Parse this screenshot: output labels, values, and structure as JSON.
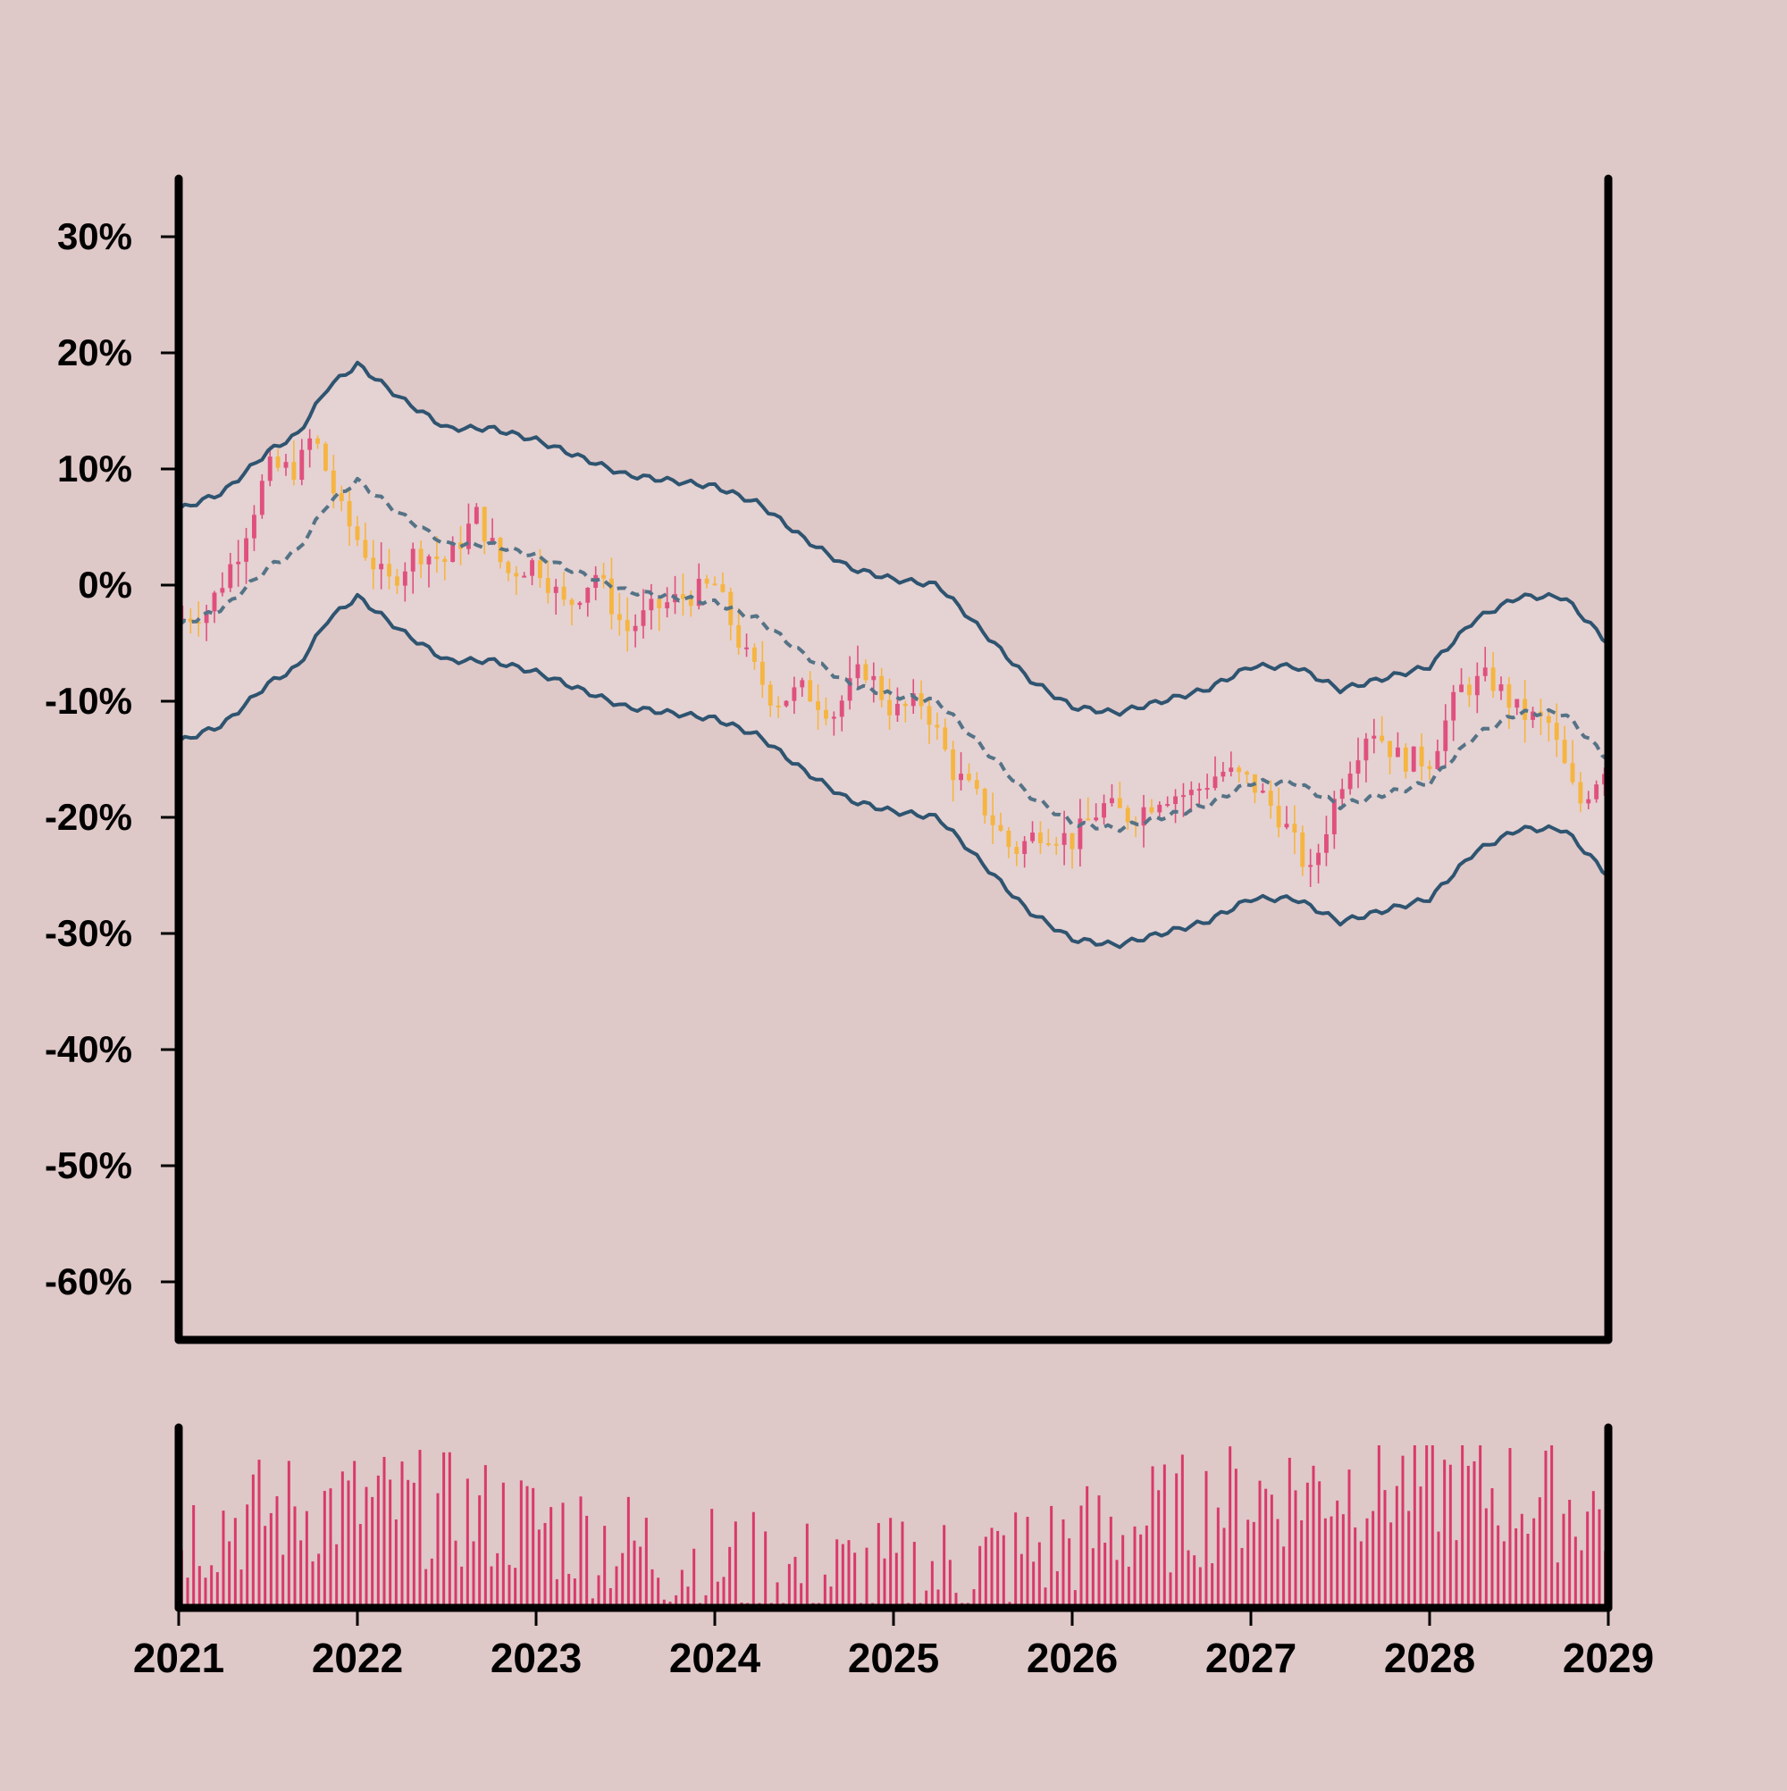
{
  "chart_data": {
    "type": "candlestick",
    "title": "",
    "xlabel": "",
    "ylabel": "",
    "x_range": [
      "2021",
      "2029"
    ],
    "x_tick_labels": [
      "2021",
      "2022",
      "2023",
      "2024",
      "2025",
      "2026",
      "2027",
      "2028",
      "2029"
    ],
    "y_range": [
      -65,
      35
    ],
    "y_unit": "%",
    "y_tick_labels": [
      "30%",
      "20%",
      "10%",
      "0%",
      "-10%",
      "-20%",
      "-30%",
      "-40%",
      "-50%",
      "-60%"
    ],
    "grid": false,
    "legend": "none",
    "colors": {
      "background": "#dfc8c8",
      "band_fill": "#e5d2d3",
      "up": "#e0507e",
      "down": "#f5b540",
      "band_line": "#2e5470",
      "middle_line": "#557386",
      "volume": "#d83a6a",
      "axis": "#000000"
    },
    "price_close_path": [
      {
        "x": "2021-01",
        "y": -3
      },
      {
        "x": "2021-03",
        "y": -2
      },
      {
        "x": "2021-05",
        "y": 3
      },
      {
        "x": "2021-07",
        "y": 10
      },
      {
        "x": "2021-09",
        "y": 10
      },
      {
        "x": "2021-10",
        "y": 13
      },
      {
        "x": "2021-12",
        "y": 6
      },
      {
        "x": "2022-01",
        "y": 4
      },
      {
        "x": "2022-03",
        "y": 0
      },
      {
        "x": "2022-05",
        "y": 3
      },
      {
        "x": "2022-07",
        "y": 2
      },
      {
        "x": "2022-09",
        "y": 6
      },
      {
        "x": "2022-11",
        "y": 1
      },
      {
        "x": "2023-01",
        "y": 2
      },
      {
        "x": "2023-03",
        "y": -2
      },
      {
        "x": "2023-05",
        "y": 1
      },
      {
        "x": "2023-07",
        "y": -4
      },
      {
        "x": "2023-09",
        "y": -2
      },
      {
        "x": "2023-11",
        "y": -1
      },
      {
        "x": "2024-01",
        "y": 0
      },
      {
        "x": "2024-03",
        "y": -6
      },
      {
        "x": "2024-05",
        "y": -10
      },
      {
        "x": "2024-07",
        "y": -9
      },
      {
        "x": "2024-09",
        "y": -11
      },
      {
        "x": "2024-11",
        "y": -7
      },
      {
        "x": "2025-01",
        "y": -11
      },
      {
        "x": "2025-03",
        "y": -10
      },
      {
        "x": "2025-05",
        "y": -16
      },
      {
        "x": "2025-07",
        "y": -19
      },
      {
        "x": "2025-09",
        "y": -23
      },
      {
        "x": "2025-11",
        "y": -21
      },
      {
        "x": "2026-01",
        "y": -22
      },
      {
        "x": "2026-03",
        "y": -19
      },
      {
        "x": "2026-05",
        "y": -20
      },
      {
        "x": "2026-07",
        "y": -18
      },
      {
        "x": "2026-09",
        "y": -18
      },
      {
        "x": "2026-11",
        "y": -16
      },
      {
        "x": "2027-01",
        "y": -17
      },
      {
        "x": "2027-03",
        "y": -20
      },
      {
        "x": "2027-05",
        "y": -25
      },
      {
        "x": "2027-07",
        "y": -17
      },
      {
        "x": "2027-09",
        "y": -12
      },
      {
        "x": "2027-11",
        "y": -15
      },
      {
        "x": "2028-01",
        "y": -15
      },
      {
        "x": "2028-03",
        "y": -9
      },
      {
        "x": "2028-05",
        "y": -8
      },
      {
        "x": "2028-07",
        "y": -11
      },
      {
        "x": "2028-09",
        "y": -12
      },
      {
        "x": "2028-11",
        "y": -19
      },
      {
        "x": "2029-01",
        "y": -15
      }
    ],
    "middle_band": [
      {
        "x": "2021-01",
        "y": -3.5
      },
      {
        "x": "2021-04",
        "y": -2
      },
      {
        "x": "2021-07",
        "y": 1.5
      },
      {
        "x": "2021-09",
        "y": 3
      },
      {
        "x": "2021-11",
        "y": 7
      },
      {
        "x": "2022-01",
        "y": 9
      },
      {
        "x": "2022-04",
        "y": 6
      },
      {
        "x": "2022-07",
        "y": 3.5
      },
      {
        "x": "2022-10",
        "y": 3.5
      },
      {
        "x": "2023-01",
        "y": 2.5
      },
      {
        "x": "2023-04",
        "y": 1
      },
      {
        "x": "2023-07",
        "y": -0.5
      },
      {
        "x": "2023-10",
        "y": -1
      },
      {
        "x": "2024-01",
        "y": -1.5
      },
      {
        "x": "2024-04",
        "y": -3
      },
      {
        "x": "2024-07",
        "y": -6
      },
      {
        "x": "2024-10",
        "y": -8.5
      },
      {
        "x": "2025-01",
        "y": -9.5
      },
      {
        "x": "2025-04",
        "y": -10
      },
      {
        "x": "2025-07",
        "y": -14
      },
      {
        "x": "2025-10",
        "y": -18
      },
      {
        "x": "2026-01",
        "y": -20.5
      },
      {
        "x": "2026-04",
        "y": -21
      },
      {
        "x": "2026-07",
        "y": -20
      },
      {
        "x": "2026-10",
        "y": -19
      },
      {
        "x": "2027-01",
        "y": -17
      },
      {
        "x": "2027-04",
        "y": -17
      },
      {
        "x": "2027-07",
        "y": -19
      },
      {
        "x": "2027-10",
        "y": -18
      },
      {
        "x": "2028-01",
        "y": -17
      },
      {
        "x": "2028-04",
        "y": -13
      },
      {
        "x": "2028-07",
        "y": -11
      },
      {
        "x": "2028-10",
        "y": -11
      },
      {
        "x": "2029-01",
        "y": -15
      }
    ],
    "band_width": 10,
    "volume_count": 240
  }
}
